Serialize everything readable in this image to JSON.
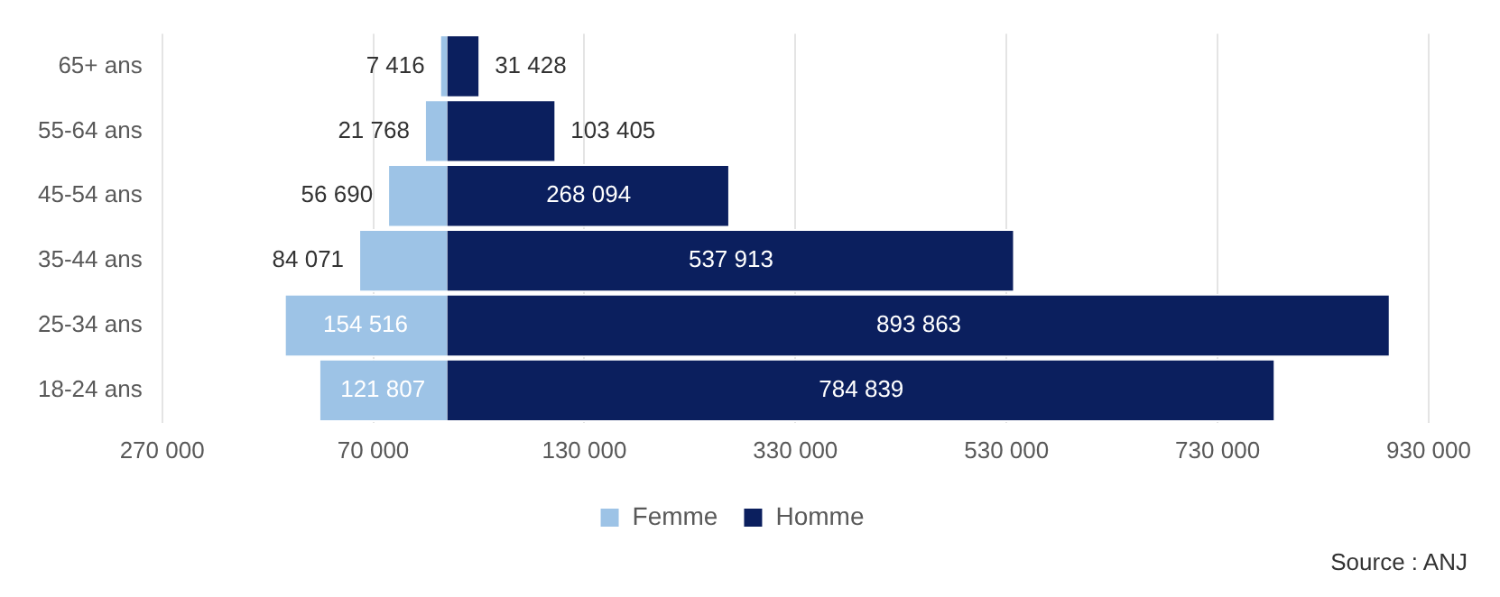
{
  "chart_data": {
    "type": "bar",
    "orientation": "horizontal",
    "categories": [
      "65+ ans",
      "55-64 ans",
      "45-54 ans",
      "35-44 ans",
      "25-34 ans",
      "18-24 ans"
    ],
    "series": [
      {
        "name": "Femme",
        "color": "#9dc3e6",
        "values": [
          7416,
          21768,
          56690,
          84071,
          154516,
          121807
        ],
        "base": [
          -7416,
          -21768,
          -56690,
          -84071,
          -154516,
          -121807
        ],
        "value_labels": [
          "7 416",
          "21 768",
          "56 690",
          "84 071",
          "154 516",
          "121 807"
        ]
      },
      {
        "name": "Homme",
        "color": "#0b1f5e",
        "values": [
          31428,
          103405,
          268094,
          537913,
          893863,
          784839
        ],
        "value_labels": [
          "31 428",
          "103 405",
          "268 094",
          "537 913",
          "893 863",
          "784 839"
        ]
      }
    ],
    "xlim": [
      -270000,
      930000
    ],
    "xticks": [
      {
        "value": -270000,
        "label": "270 000"
      },
      {
        "value": -70000,
        "label": "70 000"
      },
      130000,
      330000,
      530000,
      730000,
      930000
    ],
    "grid": "x",
    "legend": "bottom",
    "annotations": [
      "Source : ANJ"
    ]
  }
}
